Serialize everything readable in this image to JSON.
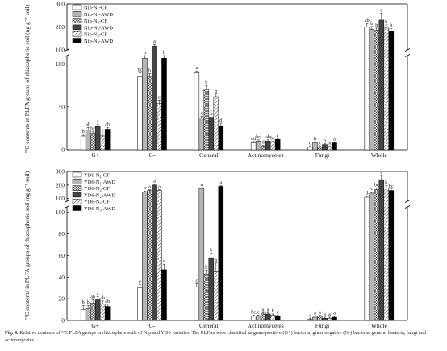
{
  "caption": {
    "label": "Fig. 4.",
    "text": "Relative contents of ¹³C PLFA groups in rhizosphere soils of Nip and YD6 varieties. The PLFAs were classified as gram-positive (G+) bacteria, gram-negative (G-) bacteria, general bacteria, fungi and actinomycetes."
  },
  "colors": {
    "CF": "#ffffff",
    "AWD_light": "#b5b5b5",
    "AWD_dark": "#444444",
    "AWD_black": "#000000"
  },
  "chart_data": [
    {
      "type": "bar",
      "ylabel": "¹³C contents in PLFA groups of rhizospheric soil (ng g⁻¹ soil)",
      "categories": [
        "G+",
        "G-",
        "General",
        "Actinomycetes",
        "Fungi",
        "Whole"
      ],
      "axis": {
        "low_ticks": [
          0,
          50,
          100
        ],
        "high_ticks": [
          100,
          200,
          300
        ],
        "break": true
      },
      "series": [
        {
          "name": "Nip-N1-CF",
          "pattern": "white",
          "values": [
            16,
            85,
            90,
            8,
            3,
            200
          ],
          "err": [
            2,
            5,
            2,
            1.5,
            1,
            15
          ],
          "letters": [
            "b",
            "bc",
            "a",
            "cd",
            "c",
            "ab"
          ]
        },
        {
          "name": "Nip-N1-AWD",
          "pattern": "gray",
          "values": [
            23,
            107,
            37,
            10,
            8,
            190
          ],
          "err": [
            3,
            3,
            2,
            1.5,
            1,
            12
          ],
          "letters": [
            "ab",
            "b",
            "c",
            "bc",
            "b",
            "b"
          ]
        },
        {
          "name": "Nip-N2-CF",
          "pattern": "cross",
          "values": [
            19,
            85,
            71,
            4,
            3,
            185
          ],
          "err": [
            2,
            4,
            4,
            1,
            1,
            10
          ],
          "letters": [
            "bc",
            "b",
            "b",
            "d",
            "c",
            "b"
          ]
        },
        {
          "name": "Nip-N2-AWD",
          "pattern": "dark",
          "values": [
            27,
            116,
            38,
            10,
            6,
            230
          ],
          "err": [
            3,
            8,
            3,
            1.5,
            1,
            30
          ],
          "letters": [
            "a",
            "a",
            "c",
            "ab",
            "b",
            "a"
          ]
        },
        {
          "name": "Nip-N3-CF",
          "pattern": "hatch",
          "values": [
            16,
            54,
            62,
            9,
            3,
            195
          ],
          "err": [
            2,
            4,
            3,
            1,
            1,
            14
          ],
          "letters": [
            "c",
            "c",
            "b",
            "bc",
            "bc",
            "b"
          ]
        },
        {
          "name": "Nip-N3-AWD",
          "pattern": "black",
          "values": [
            24,
            107,
            28,
            12,
            8,
            182
          ],
          "err": [
            2,
            3,
            3,
            1,
            1,
            12
          ],
          "letters": [
            "ab",
            "b",
            "d",
            "a",
            "a",
            "b"
          ]
        }
      ]
    },
    {
      "type": "bar",
      "ylabel": "¹³C contents in PLFA groups of rhizospheric soil (ng g⁻¹ soil)",
      "categories": [
        "G+",
        "G-",
        "General",
        "Actinomycetes",
        "Fungi",
        "Whole"
      ],
      "axis": {
        "low_ticks": [
          0,
          20,
          40,
          60,
          80,
          100
        ],
        "high_ticks": [
          100,
          200,
          300
        ],
        "break": true
      },
      "series": [
        {
          "name": "YD6-N1-CF",
          "pattern": "white",
          "values": [
            10,
            30,
            31,
            4,
            1,
            110
          ],
          "err": [
            4,
            3,
            3,
            1,
            1,
            8
          ],
          "letters": [
            "b",
            "e",
            "c",
            "bc",
            "a",
            "d"
          ]
        },
        {
          "name": "YD6-N1-AWD",
          "pattern": "gray",
          "values": [
            11,
            150,
            175,
            4,
            3,
            140
          ],
          "err": [
            3,
            6,
            5,
            1,
            1,
            10
          ],
          "letters": [
            "b",
            "b",
            "a",
            "c",
            "a",
            "c"
          ]
        },
        {
          "name": "YD6-N2-CF",
          "pattern": "cross",
          "values": [
            16,
            160,
            43,
            6,
            4,
            165
          ],
          "err": [
            3,
            5,
            3,
            1,
            1,
            12
          ],
          "letters": [
            "ab",
            "a",
            "b",
            "a",
            "a",
            "bc"
          ]
        },
        {
          "name": "YD6-N2-AWD",
          "pattern": "dark",
          "values": [
            19,
            200,
            58,
            6,
            2,
            240
          ],
          "err": [
            3,
            8,
            4,
            1,
            1,
            30
          ],
          "letters": [
            "a",
            "a",
            "b",
            "a",
            "a",
            "a"
          ]
        },
        {
          "name": "YD6-N3-CF",
          "pattern": "hatch",
          "values": [
            15,
            160,
            45,
            5,
            2,
            180
          ],
          "err": [
            3,
            6,
            8,
            1,
            1,
            14
          ],
          "letters": [
            "ab",
            "a",
            "b",
            "b",
            "a",
            "b"
          ]
        },
        {
          "name": "YD6-N3-AWD",
          "pattern": "black",
          "values": [
            13,
            47,
            190,
            4,
            3,
            160
          ],
          "err": [
            2,
            5,
            5,
            1,
            1,
            10
          ],
          "letters": [
            "ab",
            "d",
            "a",
            "c",
            "a",
            "bc"
          ]
        }
      ]
    }
  ],
  "legend_names": [
    {
      "base": "Nip-N",
      "sub": "1",
      "tail": "-CF"
    },
    {
      "base": "Nip-N",
      "sub": "1",
      "tail": "-AWD"
    },
    {
      "base": "Nip-N",
      "sub": "2",
      "tail": "-CF"
    },
    {
      "base": "Nip-N",
      "sub": "2",
      "tail": "-AWD"
    },
    {
      "base": "Nip-N",
      "sub": "3",
      "tail": "-CF"
    },
    {
      "base": "Nip-N",
      "sub": "3",
      "tail": "-AWD"
    }
  ],
  "legend_names_2": [
    {
      "base": "YD6-N",
      "sub": "1",
      "tail": "-CF"
    },
    {
      "base": "YD6-N",
      "sub": "1",
      "tail": "-AWD"
    },
    {
      "base": "YD6-N",
      "sub": "2",
      "tail": "-CF"
    },
    {
      "base": "YD6-N",
      "sub": "2",
      "tail": "-AWD"
    },
    {
      "base": "YD6-N",
      "sub": "3",
      "tail": "-CF"
    },
    {
      "base": "YD6-N",
      "sub": "3",
      "tail": "-AWD"
    }
  ]
}
